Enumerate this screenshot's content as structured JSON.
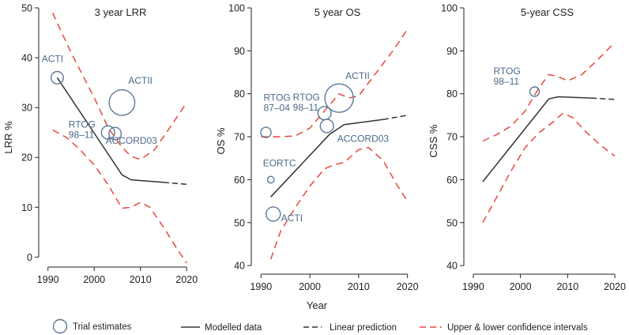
{
  "figure": {
    "xlabel": "Year",
    "legend": {
      "trial": "Trial estimates",
      "modelled": "Modelled data",
      "linear": "Linear prediction",
      "ci": "Upper & lower confidence intervals"
    },
    "colors": {
      "circle": "#5b7a99",
      "label": "#4a6a8a",
      "model": "#333333",
      "ci": "#e8473c",
      "axis": "#222222"
    }
  },
  "chart_data": [
    {
      "type": "line",
      "title": "3 year LRR",
      "ylabel": "LRR %",
      "xlim": [
        1988,
        2022
      ],
      "ylim": [
        -2,
        50
      ],
      "xticks": [
        1990,
        2000,
        2010,
        2020
      ],
      "yticks": [
        0,
        10,
        20,
        30,
        40,
        50
      ],
      "series": [
        {
          "name": "Modelled data",
          "style": "model",
          "x": [
            1992,
            2006,
            2008,
            2015
          ],
          "y": [
            36,
            16.5,
            15.5,
            15
          ]
        },
        {
          "name": "Linear prediction",
          "style": "linear",
          "x": [
            2015,
            2020
          ],
          "y": [
            15,
            14.6
          ]
        },
        {
          "name": "Upper confidence interval",
          "style": "ci",
          "x": [
            1991,
            1995,
            2000,
            2003,
            2006,
            2008,
            2010,
            2013,
            2016,
            2020
          ],
          "y": [
            49,
            41,
            32,
            26,
            22,
            20.2,
            19.6,
            21.5,
            25.5,
            31
          ]
        },
        {
          "name": "Lower confidence interval",
          "style": "ci",
          "x": [
            1991,
            1994,
            1997,
            2000,
            2003,
            2006,
            2008,
            2010,
            2012,
            2015,
            2018,
            2020
          ],
          "y": [
            25.5,
            24,
            21.5,
            18.5,
            14.5,
            9.8,
            10,
            11,
            10,
            6,
            1.5,
            -1.2
          ]
        }
      ],
      "trials": [
        {
          "label": "ACTI",
          "x": 1992,
          "y": 36,
          "r": 1.3
        },
        {
          "label": "ACTII",
          "x": 2006,
          "y": 31,
          "r": 2.7
        },
        {
          "label": "RTOG 98–11",
          "x": 2003,
          "y": 25,
          "r": 1.4
        },
        {
          "label": "ACCORD03",
          "x": 2004.5,
          "y": 24.8,
          "r": 1.3
        }
      ]
    },
    {
      "type": "line",
      "title": "5 year OS",
      "ylabel": "OS %",
      "xlim": [
        1988,
        2022
      ],
      "ylim": [
        38,
        100
      ],
      "xticks": [
        1990,
        2000,
        2010,
        2020
      ],
      "yticks": [
        40,
        50,
        60,
        70,
        80,
        90,
        100
      ],
      "series": [
        {
          "name": "Modelled data",
          "style": "model",
          "x": [
            1992,
            2004,
            2007,
            2015
          ],
          "y": [
            56,
            70.5,
            72.8,
            74
          ]
        },
        {
          "name": "Linear prediction",
          "style": "linear",
          "x": [
            2015,
            2020
          ],
          "y": [
            74,
            75
          ]
        },
        {
          "name": "Upper confidence interval",
          "style": "ci",
          "x": [
            1990,
            1994,
            1997,
            2000,
            2003,
            2006,
            2008,
            2010,
            2014,
            2017,
            2020
          ],
          "y": [
            70,
            70,
            70.2,
            72,
            76,
            80,
            79,
            79.5,
            85.5,
            90,
            95
          ]
        },
        {
          "name": "Lower confidence interval",
          "style": "ci",
          "x": [
            1992,
            1994,
            1997,
            2000,
            2003,
            2005,
            2007,
            2010,
            2012,
            2015,
            2018,
            2020
          ],
          "y": [
            41.5,
            48,
            53.5,
            58.5,
            62.5,
            63.5,
            64,
            67,
            67.5,
            64.5,
            58.5,
            55
          ]
        }
      ],
      "trials": [
        {
          "label": "RTOG 87–04",
          "x": 1991,
          "y": 71,
          "r": 1.1
        },
        {
          "label": "EORTC",
          "x": 1992,
          "y": 60,
          "r": 0.7
        },
        {
          "label": "ACTI",
          "x": 1992.5,
          "y": 52,
          "r": 1.5
        },
        {
          "label": "RTOG 98–11",
          "x": 2003,
          "y": 75.5,
          "r": 1.4
        },
        {
          "label": "ACCORD03",
          "x": 2003.5,
          "y": 72.5,
          "r": 1.4
        },
        {
          "label": "ACTII",
          "x": 2006,
          "y": 79,
          "r": 3.0
        }
      ]
    },
    {
      "type": "line",
      "title": "5-year CSS",
      "ylabel": "CSS %",
      "xlim": [
        1988,
        2022
      ],
      "ylim": [
        38,
        100
      ],
      "xticks": [
        1990,
        2000,
        2010,
        2020
      ],
      "yticks": [
        40,
        50,
        60,
        70,
        80,
        90,
        100
      ],
      "series": [
        {
          "name": "Modelled data",
          "style": "model",
          "x": [
            1992,
            2006,
            2008,
            2015
          ],
          "y": [
            59.5,
            78.8,
            79.3,
            79
          ]
        },
        {
          "name": "Linear prediction",
          "style": "linear",
          "x": [
            2015,
            2020
          ],
          "y": [
            79,
            78.7
          ]
        },
        {
          "name": "Upper confidence interval",
          "style": "ci",
          "x": [
            1992,
            1995,
            1998,
            2001,
            2004,
            2006,
            2008,
            2010,
            2013,
            2016,
            2020
          ],
          "y": [
            69,
            70.5,
            72.5,
            76,
            81.5,
            84.5,
            84,
            83,
            84.5,
            87.5,
            92
          ]
        },
        {
          "name": "Lower confidence interval",
          "style": "ci",
          "x": [
            1992,
            1995,
            1998,
            2001,
            2004,
            2007,
            2009,
            2011,
            2014,
            2017,
            2020
          ],
          "y": [
            50,
            56,
            62,
            67.5,
            71,
            73.5,
            75.5,
            74.5,
            71,
            68,
            65.5
          ]
        }
      ],
      "trials": [
        {
          "label": "RTOG 98–11",
          "x": 2003,
          "y": 80.5,
          "r": 1.0
        }
      ]
    }
  ]
}
